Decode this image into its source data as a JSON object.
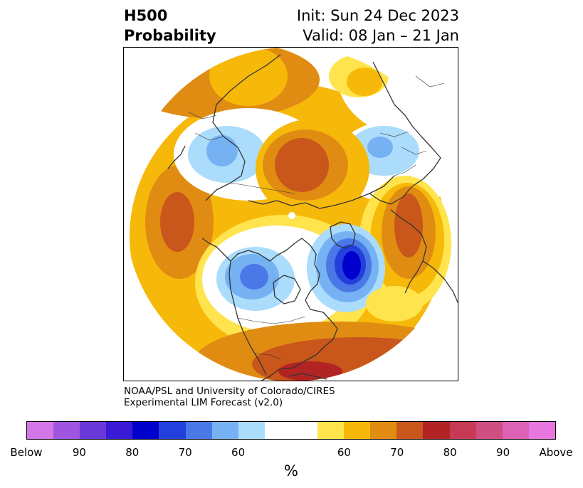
{
  "title": {
    "line1": "H500",
    "line2": "Probability",
    "init": "Init: Sun 24 Dec 2023",
    "valid": "Valid: 08 Jan – 21 Jan"
  },
  "credit": {
    "line1": "NOAA/PSL and University of Colorado/CIRES",
    "line2": "Experimental LIM Forecast (v2.0)"
  },
  "colorbar": {
    "unit": "%",
    "colors": [
      "#d376e8",
      "#a055e0",
      "#6a37d9",
      "#3a1ad4",
      "#0000cc",
      "#2340dd",
      "#4a78e6",
      "#76b2f3",
      "#abdcfb",
      "#ffffff",
      "#ffffff",
      "#ffe44d",
      "#f6b90a",
      "#e08c12",
      "#c9561a",
      "#b22424",
      "#c63a55",
      "#cf4f82",
      "#dc62b5",
      "#e876df"
    ],
    "ticks": [
      "Below",
      "90",
      "80",
      "70",
      "60",
      "60",
      "70",
      "80",
      "90",
      "Above"
    ]
  },
  "map": {
    "projection": "north-polar-stereographic",
    "colors": {
      "yellow": "#ffe44d",
      "gold": "#f6b90a",
      "orange": "#e08c12",
      "rust": "#c9561a",
      "red": "#b22424",
      "light_blue": "#abdcfb",
      "sky_blue": "#76b2f3",
      "blue": "#4a78e6",
      "royal_blue": "#2340dd",
      "deep_blue": "#0000cc",
      "coast": "#333333"
    }
  }
}
